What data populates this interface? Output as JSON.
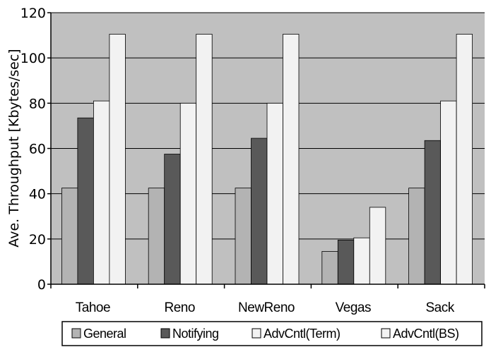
{
  "chart_data": {
    "type": "bar",
    "categories": [
      "Tahoe",
      "Reno",
      "NewReno",
      "Vegas",
      "Sack"
    ],
    "series": [
      {
        "name": "General",
        "values": [
          42.5,
          42.5,
          42.5,
          14.5,
          42.5
        ],
        "color": "#b3b3b3"
      },
      {
        "name": "Notifying",
        "values": [
          73.5,
          57.5,
          64.5,
          19.5,
          63.5
        ],
        "color": "#595959"
      },
      {
        "name": "AdvCntl(Term)",
        "values": [
          81,
          80,
          80,
          20.5,
          81
        ],
        "color": "#f2f2f2"
      },
      {
        "name": "AdvCntl(BS)",
        "values": [
          110.5,
          110.5,
          110.5,
          34,
          110.5
        ],
        "color": "#f2f2f2"
      }
    ],
    "title": "",
    "xlabel": "",
    "ylabel": "Ave. Throughput [Kbytes/sec]",
    "ylim": [
      0,
      120
    ],
    "yticks": [
      "0",
      "20",
      "40",
      "60",
      "80",
      "100",
      "120"
    ],
    "grid": true,
    "plot_background": "#c0c0c0",
    "legend_position": "bottom"
  }
}
